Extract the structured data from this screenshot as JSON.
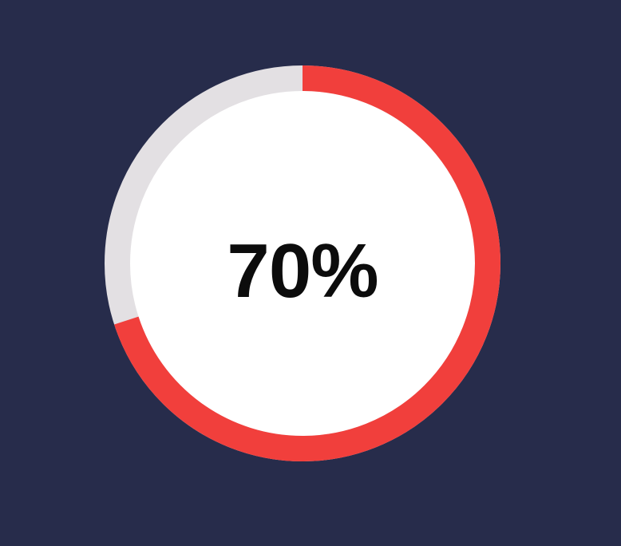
{
  "progress": {
    "value": 0.7,
    "label": "70%"
  },
  "colors": {
    "background": "#272c4b",
    "track": "#e3e0e3",
    "fill": "#f13f3c",
    "inner": "#ffffff",
    "text": "#0c0c0c"
  }
}
